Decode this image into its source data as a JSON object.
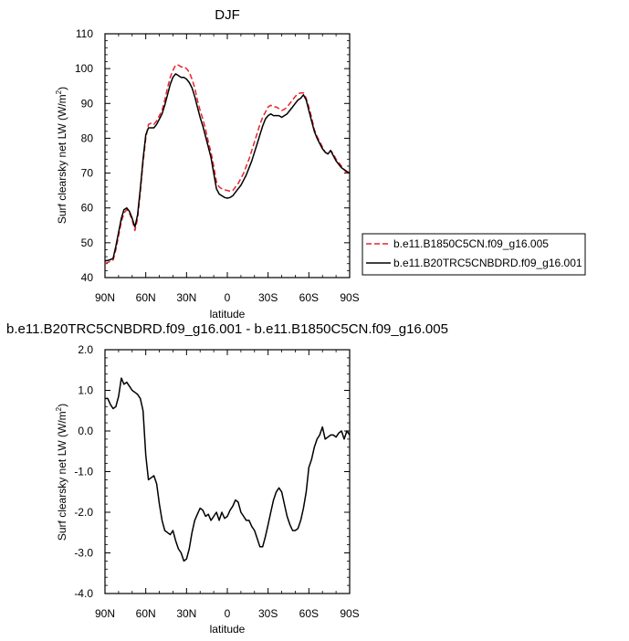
{
  "chart_data": [
    {
      "type": "line",
      "title": "DJF",
      "xlabel": "latitude",
      "ylabel": "Surf clearsky net LW (W/m",
      "ylabel_sup": "2",
      "ylabel_tail": ")",
      "xlim": [
        90,
        -90
      ],
      "ylim": [
        40,
        110
      ],
      "xticks": [
        {
          "value": 90,
          "label": "90N"
        },
        {
          "value": 60,
          "label": "60N"
        },
        {
          "value": 30,
          "label": "30N"
        },
        {
          "value": 0,
          "label": "0"
        },
        {
          "value": -30,
          "label": "30S"
        },
        {
          "value": -60,
          "label": "60S"
        },
        {
          "value": -90,
          "label": "90S"
        }
      ],
      "yticks": [
        {
          "value": 40,
          "label": "40"
        },
        {
          "value": 50,
          "label": "50"
        },
        {
          "value": 60,
          "label": "60"
        },
        {
          "value": 70,
          "label": "70"
        },
        {
          "value": 80,
          "label": "80"
        },
        {
          "value": 90,
          "label": "90"
        },
        {
          "value": 100,
          "label": "100"
        },
        {
          "value": 110,
          "label": "110"
        }
      ],
      "legend_position": "right",
      "series": [
        {
          "name": "b.e11.B1850C5CN.f09_g16.005",
          "color": "#e8232a",
          "dash": "dashed",
          "x": [
            90,
            87,
            84,
            82,
            80,
            78,
            76,
            74,
            72,
            70,
            68,
            66,
            64,
            62,
            60,
            58,
            56,
            54,
            52,
            50,
            48,
            46,
            44,
            42,
            40,
            38,
            36,
            34,
            32,
            30,
            28,
            26,
            24,
            22,
            20,
            18,
            16,
            14,
            12,
            10,
            8,
            6,
            4,
            2,
            0,
            -2,
            -4,
            -6,
            -8,
            -10,
            -12,
            -14,
            -16,
            -18,
            -20,
            -22,
            -24,
            -26,
            -28,
            -30,
            -32,
            -34,
            -36,
            -38,
            -40,
            -42,
            -44,
            -46,
            -48,
            -50,
            -52,
            -54,
            -56,
            -58,
            -60,
            -62,
            -64,
            -66,
            -68,
            -70,
            -72,
            -74,
            -76,
            -78,
            -80,
            -82,
            -84,
            -86,
            -88,
            -90
          ],
          "y": [
            44.0,
            44.5,
            45.0,
            48.0,
            52.0,
            56.0,
            58.5,
            59.5,
            58.5,
            56.5,
            53.5,
            57.0,
            64.5,
            73.0,
            80.0,
            84.0,
            84.3,
            84.0,
            85.0,
            86.5,
            88.0,
            91.0,
            94.5,
            97.5,
            99.5,
            101.0,
            101.0,
            100.5,
            100.5,
            100.0,
            99.0,
            97.0,
            94.5,
            91.0,
            88.0,
            85.5,
            82.5,
            79.0,
            76.0,
            72.0,
            67.5,
            66.0,
            65.5,
            65.2,
            65.0,
            64.8,
            65.0,
            66.0,
            67.0,
            68.5,
            70.0,
            72.0,
            74.0,
            76.5,
            79.0,
            81.5,
            84.0,
            86.0,
            87.5,
            89.0,
            89.5,
            89.0,
            89.0,
            88.5,
            88.0,
            88.3,
            89.0,
            90.0,
            91.0,
            92.0,
            92.8,
            93.0,
            93.0,
            91.5,
            89.0,
            86.0,
            82.5,
            80.5,
            79.0,
            77.5,
            76.0,
            75.5,
            76.5,
            75.5,
            74.0,
            73.0,
            72.0,
            71.0,
            70.0,
            70.0
          ]
        },
        {
          "name": "b.e11.B20TRC5CNBDRD.f09_g16.001",
          "color": "#000000",
          "dash": "solid",
          "x": [
            90,
            87,
            84,
            82,
            80,
            78,
            76,
            74,
            72,
            70,
            68,
            66,
            64,
            62,
            60,
            58,
            56,
            54,
            52,
            50,
            48,
            46,
            44,
            42,
            40,
            38,
            36,
            34,
            32,
            30,
            28,
            26,
            24,
            22,
            20,
            18,
            16,
            14,
            12,
            10,
            8,
            6,
            4,
            2,
            0,
            -2,
            -4,
            -6,
            -8,
            -10,
            -12,
            -14,
            -16,
            -18,
            -20,
            -22,
            -24,
            -26,
            -28,
            -30,
            -32,
            -34,
            -36,
            -38,
            -40,
            -42,
            -44,
            -46,
            -48,
            -50,
            -52,
            -54,
            -56,
            -58,
            -60,
            -62,
            -64,
            -66,
            -68,
            -70,
            -72,
            -74,
            -76,
            -78,
            -80,
            -82,
            -84,
            -86,
            -88,
            -90
          ],
          "y": [
            44.8,
            45.0,
            45.5,
            49.0,
            53.0,
            57.0,
            59.5,
            60.0,
            59.0,
            57.0,
            54.5,
            58.0,
            65.5,
            74.0,
            81.0,
            83.0,
            83.0,
            83.0,
            84.0,
            85.5,
            87.0,
            89.5,
            92.5,
            95.5,
            97.5,
            98.5,
            98.0,
            97.5,
            97.5,
            97.0,
            96.0,
            94.5,
            92.0,
            89.0,
            86.0,
            83.5,
            80.5,
            77.5,
            74.5,
            70.0,
            65.5,
            64.0,
            63.5,
            63.0,
            62.8,
            63.0,
            63.5,
            64.5,
            65.5,
            66.5,
            68.0,
            69.5,
            71.5,
            73.5,
            76.0,
            78.5,
            81.0,
            83.5,
            85.5,
            86.5,
            87.0,
            86.5,
            86.5,
            86.5,
            86.0,
            86.5,
            87.0,
            88.0,
            89.0,
            90.0,
            91.0,
            91.5,
            92.5,
            91.0,
            88.0,
            85.0,
            82.0,
            80.0,
            78.5,
            77.0,
            76.0,
            75.5,
            76.5,
            75.0,
            73.5,
            72.5,
            71.5,
            71.0,
            70.5,
            70.0
          ]
        }
      ]
    },
    {
      "type": "line",
      "title": "b.e11.B20TRC5CNBDRD.f09_g16.001 - b.e11.B1850C5CN.f09_g16.005",
      "xlabel": "latitude",
      "ylabel": "Surf clearsky net LW (W/m",
      "ylabel_sup": "2",
      "ylabel_tail": ")",
      "xlim": [
        90,
        -90
      ],
      "ylim": [
        -4.0,
        2.0
      ],
      "xticks": [
        {
          "value": 90,
          "label": "90N"
        },
        {
          "value": 60,
          "label": "60N"
        },
        {
          "value": 30,
          "label": "30N"
        },
        {
          "value": 0,
          "label": "0"
        },
        {
          "value": -30,
          "label": "30S"
        },
        {
          "value": -60,
          "label": "60S"
        },
        {
          "value": -90,
          "label": "90S"
        }
      ],
      "yticks": [
        {
          "value": -4.0,
          "label": "-4.0"
        },
        {
          "value": -3.0,
          "label": "-3.0"
        },
        {
          "value": -2.0,
          "label": "-2.0"
        },
        {
          "value": -1.0,
          "label": "-1.0"
        },
        {
          "value": 0.0,
          "label": "0.0"
        },
        {
          "value": 1.0,
          "label": "1.0"
        },
        {
          "value": 2.0,
          "label": "2.0"
        }
      ],
      "series": [
        {
          "color": "#000000",
          "dash": "solid",
          "x": [
            90,
            88,
            86,
            84,
            82,
            80,
            78,
            76,
            74,
            72,
            70,
            68,
            66,
            64,
            62,
            60,
            58,
            56,
            54,
            52,
            50,
            48,
            46,
            44,
            42,
            40,
            38,
            36,
            34,
            32,
            30,
            28,
            26,
            24,
            22,
            20,
            18,
            16,
            14,
            12,
            10,
            8,
            6,
            4,
            2,
            0,
            -2,
            -4,
            -6,
            -8,
            -10,
            -12,
            -14,
            -16,
            -18,
            -20,
            -22,
            -24,
            -26,
            -28,
            -30,
            -32,
            -34,
            -36,
            -38,
            -40,
            -42,
            -44,
            -46,
            -48,
            -50,
            -52,
            -54,
            -56,
            -58,
            -60,
            -62,
            -64,
            -66,
            -68,
            -70,
            -72,
            -74,
            -76,
            -78,
            -80,
            -82,
            -84,
            -86,
            -88,
            -90
          ],
          "y": [
            0.8,
            0.8,
            0.65,
            0.55,
            0.6,
            0.85,
            1.3,
            1.15,
            1.2,
            1.1,
            1.0,
            0.95,
            0.9,
            0.8,
            0.5,
            -0.6,
            -1.2,
            -1.15,
            -1.1,
            -1.3,
            -1.8,
            -2.2,
            -2.45,
            -2.5,
            -2.55,
            -2.45,
            -2.7,
            -2.9,
            -3.0,
            -3.2,
            -3.15,
            -2.9,
            -2.5,
            -2.2,
            -2.05,
            -1.9,
            -1.95,
            -2.1,
            -2.05,
            -2.2,
            -2.1,
            -2.0,
            -2.2,
            -2.0,
            -2.15,
            -2.1,
            -1.95,
            -1.85,
            -1.7,
            -1.75,
            -2.0,
            -2.1,
            -2.2,
            -2.2,
            -2.35,
            -2.45,
            -2.65,
            -2.85,
            -2.85,
            -2.6,
            -2.3,
            -2.0,
            -1.7,
            -1.5,
            -1.4,
            -1.5,
            -1.8,
            -2.1,
            -2.3,
            -2.45,
            -2.45,
            -2.4,
            -2.2,
            -1.9,
            -1.5,
            -0.9,
            -0.7,
            -0.4,
            -0.2,
            -0.1,
            0.1,
            -0.2,
            -0.15,
            -0.1,
            -0.1,
            -0.15,
            -0.05,
            0.0,
            -0.2,
            0.0,
            -0.1
          ]
        }
      ]
    }
  ]
}
